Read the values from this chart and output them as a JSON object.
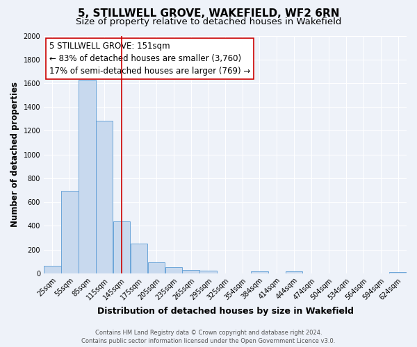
{
  "title": "5, STILLWELL GROVE, WAKEFIELD, WF2 6RN",
  "subtitle": "Size of property relative to detached houses in Wakefield",
  "xlabel": "Distribution of detached houses by size in Wakefield",
  "ylabel": "Number of detached properties",
  "categories": [
    "25sqm",
    "55sqm",
    "85sqm",
    "115sqm",
    "145sqm",
    "175sqm",
    "205sqm",
    "235sqm",
    "265sqm",
    "295sqm",
    "325sqm",
    "354sqm",
    "384sqm",
    "414sqm",
    "444sqm",
    "474sqm",
    "504sqm",
    "534sqm",
    "564sqm",
    "594sqm",
    "624sqm"
  ],
  "bar_left_edges": [
    10,
    40,
    70,
    100,
    130,
    160,
    190,
    220,
    250,
    280,
    310,
    339,
    369,
    399,
    429,
    459,
    489,
    519,
    549,
    579,
    609
  ],
  "bar_widths": [
    30,
    30,
    30,
    30,
    30,
    30,
    30,
    30,
    30,
    30,
    30,
    30,
    30,
    30,
    30,
    30,
    30,
    30,
    30,
    30,
    30
  ],
  "bar_heights": [
    65,
    695,
    1630,
    1285,
    440,
    250,
    90,
    52,
    30,
    25,
    0,
    0,
    15,
    0,
    15,
    0,
    0,
    0,
    0,
    0,
    12
  ],
  "bar_color": "#c8d9ee",
  "bar_edge_color": "#5b9bd5",
  "marker_x": 145,
  "marker_color": "#cc0000",
  "annotation_title": "5 STILLWELL GROVE: 151sqm",
  "annotation_line1": "← 83% of detached houses are smaller (3,760)",
  "annotation_line2": "17% of semi-detached houses are larger (769) →",
  "annotation_box_color": "white",
  "annotation_box_edge_color": "#cc0000",
  "ylim": [
    0,
    2000
  ],
  "yticks": [
    0,
    200,
    400,
    600,
    800,
    1000,
    1200,
    1400,
    1600,
    1800,
    2000
  ],
  "xlim_min": 10,
  "xlim_max": 639,
  "tick_positions": [
    25,
    55,
    85,
    115,
    145,
    175,
    205,
    235,
    265,
    295,
    325,
    354,
    384,
    414,
    444,
    474,
    504,
    534,
    564,
    594,
    624
  ],
  "footer1": "Contains HM Land Registry data © Crown copyright and database right 2024.",
  "footer2": "Contains public sector information licensed under the Open Government Licence v3.0.",
  "bg_color": "#eef2f9",
  "grid_color": "#ffffff",
  "title_fontsize": 11,
  "subtitle_fontsize": 9.5,
  "xlabel_fontsize": 9,
  "ylabel_fontsize": 8.5,
  "tick_fontsize": 7,
  "annotation_fontsize": 8.5,
  "footer_fontsize": 6
}
